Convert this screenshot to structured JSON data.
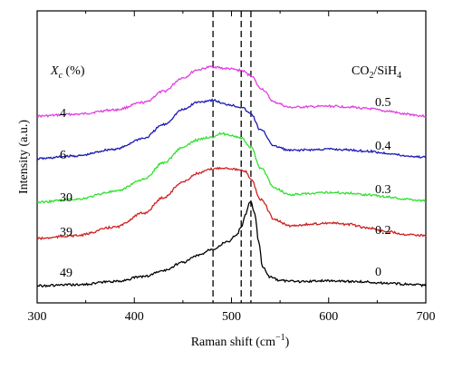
{
  "chart_data": {
    "type": "line",
    "xlabel": "Raman shift (cm",
    "xlabel_sup": "−1",
    "xlabel_close": ")",
    "ylabel": "Intensity (a.u.)",
    "xlim": [
      300,
      700
    ],
    "x_ticks": [
      300,
      400,
      500,
      600,
      700
    ],
    "grid": false,
    "dashed_lines_x": [
      481,
      510,
      520
    ],
    "left_header": {
      "symbol": "X",
      "subscript": "c",
      "unit": " (%)"
    },
    "right_header": {
      "a": "CO",
      "a_sub": "2",
      "mid": "/SiH",
      "b_sub": "4"
    },
    "series": [
      {
        "color": "#e040e0",
        "left_label": "4",
        "right_label": "0.5",
        "x": [
          300,
          340,
          380,
          410,
          430,
          450,
          465,
          480,
          495,
          510,
          520,
          530,
          545,
          560,
          580,
          600,
          620,
          640,
          660,
          680,
          700
        ],
        "y": [
          0.0,
          0.03,
          0.1,
          0.22,
          0.4,
          0.62,
          0.75,
          0.8,
          0.77,
          0.74,
          0.66,
          0.45,
          0.22,
          0.14,
          0.15,
          0.16,
          0.15,
          0.12,
          0.08,
          0.03,
          0.0
        ]
      },
      {
        "color": "#1a1ab4",
        "left_label": "6",
        "right_label": "0.4",
        "x": [
          300,
          340,
          380,
          410,
          430,
          450,
          465,
          480,
          495,
          510,
          520,
          530,
          545,
          560,
          580,
          600,
          620,
          640,
          660,
          680,
          700
        ],
        "y": [
          0.0,
          0.04,
          0.14,
          0.3,
          0.5,
          0.72,
          0.83,
          0.86,
          0.8,
          0.76,
          0.66,
          0.42,
          0.18,
          0.12,
          0.13,
          0.14,
          0.13,
          0.11,
          0.08,
          0.04,
          0.02
        ]
      },
      {
        "color": "#30e030",
        "left_label": "30",
        "right_label": "0.3",
        "x": [
          300,
          340,
          380,
          410,
          430,
          450,
          465,
          480,
          490,
          500,
          510,
          520,
          530,
          545,
          560,
          580,
          600,
          620,
          640,
          660,
          680,
          700
        ],
        "y": [
          0.0,
          0.04,
          0.14,
          0.3,
          0.52,
          0.72,
          0.82,
          0.86,
          0.9,
          0.88,
          0.84,
          0.72,
          0.45,
          0.18,
          0.1,
          0.11,
          0.13,
          0.12,
          0.1,
          0.07,
          0.04,
          0.02
        ]
      },
      {
        "color": "#d02020",
        "left_label": "39",
        "right_label": "0.2",
        "x": [
          300,
          340,
          380,
          410,
          430,
          450,
          465,
          480,
          490,
          500,
          510,
          515,
          520,
          530,
          545,
          560,
          580,
          600,
          620,
          640,
          660,
          680,
          700
        ],
        "y": [
          0.0,
          0.04,
          0.16,
          0.36,
          0.58,
          0.8,
          0.92,
          0.98,
          1.0,
          0.99,
          0.96,
          0.94,
          0.84,
          0.55,
          0.26,
          0.18,
          0.2,
          0.22,
          0.2,
          0.15,
          0.1,
          0.06,
          0.04
        ]
      },
      {
        "color": "#000000",
        "left_label": "49",
        "right_label": "0",
        "x": [
          300,
          340,
          380,
          410,
          430,
          450,
          465,
          480,
          495,
          505,
          510,
          515,
          518,
          520,
          524,
          528,
          532,
          540,
          550,
          570,
          600,
          630,
          660,
          690,
          700
        ],
        "y": [
          0.0,
          0.01,
          0.05,
          0.11,
          0.18,
          0.28,
          0.36,
          0.44,
          0.52,
          0.6,
          0.7,
          0.86,
          0.98,
          1.0,
          0.86,
          0.52,
          0.22,
          0.1,
          0.06,
          0.05,
          0.06,
          0.05,
          0.03,
          0.01,
          0.0
        ]
      }
    ]
  }
}
